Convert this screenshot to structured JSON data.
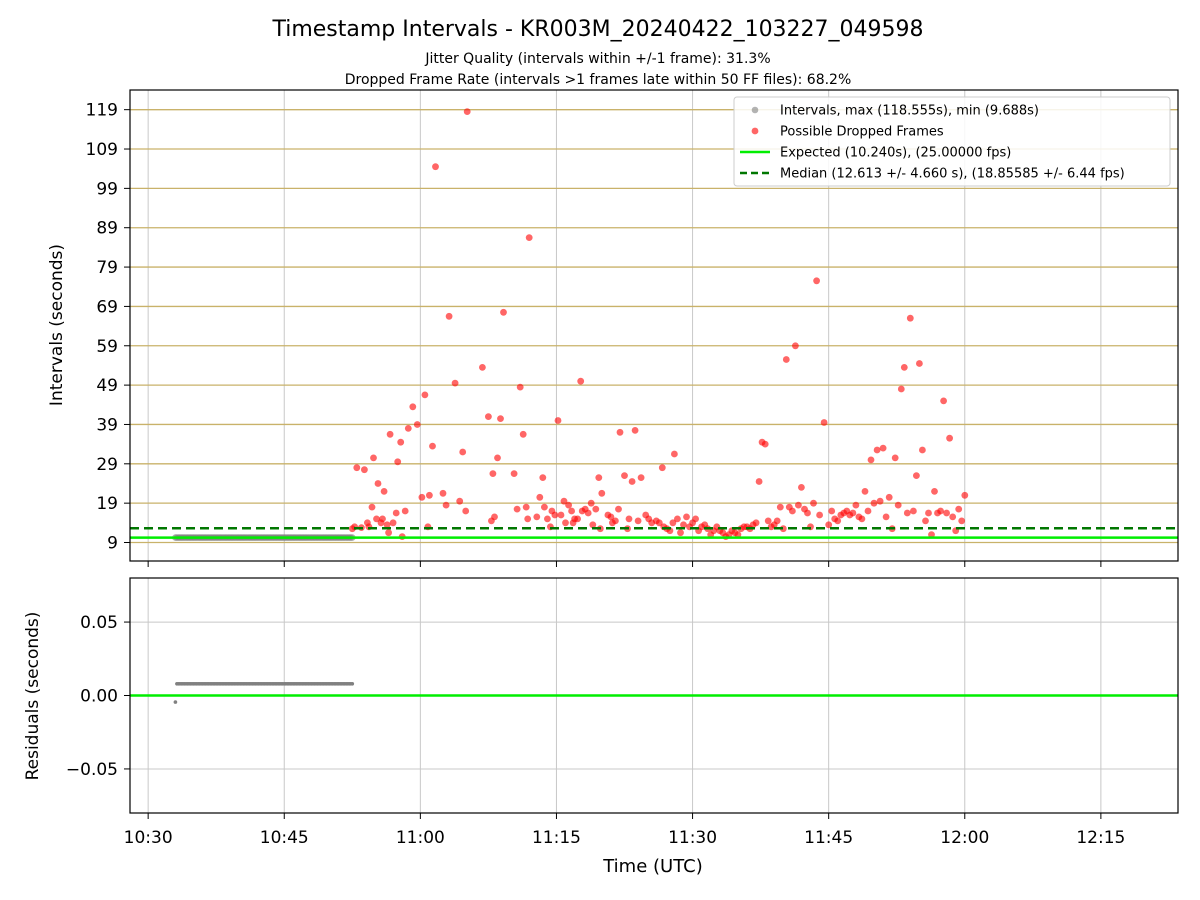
{
  "title": "Timestamp Intervals - KR003M_20240422_103227_049598",
  "subtitle1": "Jitter Quality (intervals within +/-1 frame): 31.3%",
  "subtitle2": "Dropped Frame Rate (intervals >1 frames late within 50 FF files): 68.2%",
  "colors": {
    "grey": "#808080",
    "red": "#ff0000",
    "expected": "#00ee00",
    "median": "#007700",
    "hgrid": "#c9b26a",
    "grid": "#c8c8c8"
  },
  "chart_data": [
    {
      "type": "scatter",
      "xlabel": "",
      "ylabel": "Intervals (seconds)",
      "xlim": [
        "10:28:00",
        "12:23:30"
      ],
      "ylim": [
        4.3,
        124.0
      ],
      "yticks": [
        9,
        19,
        29,
        39,
        49,
        59,
        69,
        79,
        89,
        99,
        109,
        119
      ],
      "xticks": [
        "10:30",
        "10:45",
        "11:00",
        "11:15",
        "11:30",
        "11:45",
        "12:00",
        "12:15"
      ],
      "grid": true,
      "legend_position": "top-right",
      "legend": [
        "Intervals, max (118.555s), min (9.688s)",
        "Possible Dropped Frames",
        "Expected (10.240s), (25.00000 fps)",
        "Median (12.613 +/- 4.660 s), (18.85585 +/- 6.44 fps)"
      ],
      "expected": 10.24,
      "median": 12.613,
      "series": [
        {
          "name": "Intervals, max (118.555s), min (9.688s)",
          "x_range": [
            "10:33:00",
            "10:52:30"
          ],
          "value": 10.24
        },
        {
          "name": "Possible Dropped Frames",
          "points": [
            [
              "10:52:30",
              12.5
            ],
            [
              "10:52:45",
              13.0
            ],
            [
              "10:53:00",
              28.0
            ],
            [
              "10:53:30",
              12.8
            ],
            [
              "10:53:50",
              27.5
            ],
            [
              "10:54:10",
              14.0
            ],
            [
              "10:54:20",
              13.0
            ],
            [
              "10:54:40",
              18.0
            ],
            [
              "10:54:50",
              30.5
            ],
            [
              "10:55:10",
              15.0
            ],
            [
              "10:55:20",
              24.0
            ],
            [
              "10:55:40",
              14.0
            ],
            [
              "10:55:50",
              15.0
            ],
            [
              "10:56:00",
              22.0
            ],
            [
              "10:56:20",
              13.5
            ],
            [
              "10:56:30",
              11.5
            ],
            [
              "10:56:40",
              36.5
            ],
            [
              "10:57:00",
              14.0
            ],
            [
              "10:57:20",
              16.5
            ],
            [
              "10:57:30",
              29.5
            ],
            [
              "10:57:50",
              34.5
            ],
            [
              "10:58:00",
              10.5
            ],
            [
              "10:58:20",
              17.0
            ],
            [
              "10:58:40",
              38.0
            ],
            [
              "10:59:10",
              43.5
            ],
            [
              "10:59:40",
              39.0
            ],
            [
              "11:00:10",
              20.5
            ],
            [
              "11:00:30",
              46.5
            ],
            [
              "11:00:50",
              13.0
            ],
            [
              "11:01:00",
              21.0
            ],
            [
              "11:01:20",
              33.5
            ],
            [
              "11:01:40",
              104.5
            ],
            [
              "11:02:30",
              21.5
            ],
            [
              "11:02:50",
              18.5
            ],
            [
              "11:03:10",
              66.5
            ],
            [
              "11:03:50",
              49.5
            ],
            [
              "11:04:20",
              19.5
            ],
            [
              "11:04:40",
              32.0
            ],
            [
              "11:05:00",
              17.0
            ],
            [
              "11:05:10",
              118.5
            ],
            [
              "11:06:50",
              53.5
            ],
            [
              "11:07:30",
              41.0
            ],
            [
              "11:07:50",
              14.5
            ],
            [
              "11:08:00",
              26.5
            ],
            [
              "11:08:10",
              15.5
            ],
            [
              "11:08:30",
              30.5
            ],
            [
              "11:08:50",
              40.5
            ],
            [
              "11:09:10",
              67.5
            ],
            [
              "11:10:20",
              26.5
            ],
            [
              "11:10:40",
              17.5
            ],
            [
              "11:11:00",
              48.5
            ],
            [
              "11:11:20",
              36.5
            ],
            [
              "11:11:40",
              18.0
            ],
            [
              "11:11:50",
              15.0
            ],
            [
              "11:12:00",
              86.5
            ],
            [
              "11:12:50",
              15.5
            ],
            [
              "11:13:10",
              20.5
            ],
            [
              "11:13:30",
              25.5
            ],
            [
              "11:13:40",
              18.0
            ],
            [
              "11:14:00",
              15.0
            ],
            [
              "11:14:20",
              13.0
            ],
            [
              "11:14:30",
              17.0
            ],
            [
              "11:14:50",
              16.0
            ],
            [
              "11:15:10",
              40.0
            ],
            [
              "11:15:30",
              16.0
            ],
            [
              "11:15:50",
              19.5
            ],
            [
              "11:16:00",
              14.0
            ],
            [
              "11:16:20",
              18.5
            ],
            [
              "11:16:40",
              17.0
            ],
            [
              "11:16:50",
              14.0
            ],
            [
              "11:17:00",
              15.0
            ],
            [
              "11:17:20",
              15.0
            ],
            [
              "11:17:40",
              50.0
            ],
            [
              "11:17:50",
              17.0
            ],
            [
              "11:18:10",
              17.5
            ],
            [
              "11:18:30",
              16.5
            ],
            [
              "11:18:50",
              19.0
            ],
            [
              "11:19:00",
              13.5
            ],
            [
              "11:19:20",
              17.5
            ],
            [
              "11:19:40",
              25.5
            ],
            [
              "11:19:50",
              12.5
            ],
            [
              "11:20:00",
              21.5
            ],
            [
              "11:20:40",
              16.0
            ],
            [
              "11:21:00",
              15.5
            ],
            [
              "11:21:10",
              14.0
            ],
            [
              "11:21:30",
              14.5
            ],
            [
              "11:21:50",
              17.5
            ],
            [
              "11:22:00",
              37.0
            ],
            [
              "11:22:30",
              26.0
            ],
            [
              "11:22:50",
              12.5
            ],
            [
              "11:23:00",
              15.0
            ],
            [
              "11:23:20",
              24.5
            ],
            [
              "11:23:40",
              37.5
            ],
            [
              "11:24:00",
              14.5
            ],
            [
              "11:24:20",
              25.5
            ],
            [
              "11:24:50",
              16.0
            ],
            [
              "11:25:10",
              15.0
            ],
            [
              "11:25:30",
              14.0
            ],
            [
              "11:26:00",
              14.5
            ],
            [
              "11:26:20",
              14.0
            ],
            [
              "11:26:40",
              28.0
            ],
            [
              "11:26:50",
              13.0
            ],
            [
              "11:27:10",
              12.5
            ],
            [
              "11:27:30",
              12.0
            ],
            [
              "11:27:50",
              14.0
            ],
            [
              "11:28:00",
              31.5
            ],
            [
              "11:28:20",
              15.0
            ],
            [
              "11:28:40",
              11.5
            ],
            [
              "11:29:00",
              13.5
            ],
            [
              "11:29:20",
              15.5
            ],
            [
              "11:29:40",
              13.0
            ],
            [
              "11:30:00",
              14.0
            ],
            [
              "11:30:20",
              15.0
            ],
            [
              "11:30:40",
              12.0
            ],
            [
              "11:31:00",
              13.0
            ],
            [
              "11:31:20",
              13.5
            ],
            [
              "11:31:40",
              12.5
            ],
            [
              "11:32:00",
              11.0
            ],
            [
              "11:32:20",
              12.0
            ],
            [
              "11:32:40",
              13.0
            ],
            [
              "11:33:00",
              12.0
            ],
            [
              "11:33:20",
              11.5
            ],
            [
              "11:33:40",
              10.5
            ],
            [
              "11:34:00",
              11.0
            ],
            [
              "11:34:20",
              12.0
            ],
            [
              "11:34:40",
              11.5
            ],
            [
              "11:35:00",
              11.0
            ],
            [
              "11:35:20",
              12.5
            ],
            [
              "11:35:40",
              13.0
            ],
            [
              "11:36:00",
              13.0
            ],
            [
              "11:36:20",
              12.5
            ],
            [
              "11:36:40",
              13.5
            ],
            [
              "11:37:00",
              14.0
            ],
            [
              "11:37:20",
              24.5
            ],
            [
              "11:37:40",
              34.5
            ],
            [
              "11:38:00",
              34.0
            ],
            [
              "11:38:20",
              14.5
            ],
            [
              "11:38:40",
              13.0
            ],
            [
              "11:39:00",
              13.5
            ],
            [
              "11:39:20",
              14.5
            ],
            [
              "11:39:40",
              18.0
            ],
            [
              "11:40:00",
              12.5
            ],
            [
              "11:40:20",
              55.5
            ],
            [
              "11:40:40",
              18.0
            ],
            [
              "11:41:00",
              17.0
            ],
            [
              "11:41:20",
              59.0
            ],
            [
              "11:41:40",
              18.5
            ],
            [
              "11:42:00",
              23.0
            ],
            [
              "11:42:20",
              17.5
            ],
            [
              "11:42:40",
              16.5
            ],
            [
              "11:43:00",
              13.0
            ],
            [
              "11:43:20",
              19.0
            ],
            [
              "11:43:40",
              75.5
            ],
            [
              "11:44:00",
              16.0
            ],
            [
              "11:44:30",
              39.5
            ],
            [
              "11:45:00",
              13.5
            ],
            [
              "11:45:20",
              17.0
            ],
            [
              "11:45:40",
              15.0
            ],
            [
              "11:46:00",
              14.5
            ],
            [
              "11:46:20",
              16.0
            ],
            [
              "11:46:40",
              16.5
            ],
            [
              "11:47:00",
              17.0
            ],
            [
              "11:47:20",
              16.0
            ],
            [
              "11:47:40",
              16.5
            ],
            [
              "11:48:00",
              18.5
            ],
            [
              "11:48:20",
              15.5
            ],
            [
              "11:48:40",
              15.0
            ],
            [
              "11:49:00",
              22.0
            ],
            [
              "11:49:20",
              17.0
            ],
            [
              "11:49:40",
              30.0
            ],
            [
              "11:50:00",
              19.0
            ],
            [
              "11:50:20",
              32.5
            ],
            [
              "11:50:40",
              19.5
            ],
            [
              "11:51:00",
              33.0
            ],
            [
              "11:51:20",
              15.5
            ],
            [
              "11:51:40",
              20.5
            ],
            [
              "11:52:00",
              12.5
            ],
            [
              "11:52:20",
              30.5
            ],
            [
              "11:52:40",
              18.5
            ],
            [
              "11:53:00",
              48.0
            ],
            [
              "11:53:20",
              53.5
            ],
            [
              "11:53:40",
              16.5
            ],
            [
              "11:54:00",
              66.0
            ],
            [
              "11:54:20",
              17.0
            ],
            [
              "11:54:40",
              26.0
            ],
            [
              "11:55:00",
              54.5
            ],
            [
              "11:55:20",
              32.5
            ],
            [
              "11:55:40",
              14.5
            ],
            [
              "11:56:00",
              16.5
            ],
            [
              "11:56:20",
              11.0
            ],
            [
              "11:56:40",
              22.0
            ],
            [
              "11:57:00",
              16.5
            ],
            [
              "11:57:20",
              17.0
            ],
            [
              "11:57:40",
              45.0
            ],
            [
              "11:58:00",
              16.5
            ],
            [
              "11:58:20",
              35.5
            ],
            [
              "11:58:40",
              15.5
            ],
            [
              "11:59:00",
              12.0
            ],
            [
              "11:59:20",
              17.5
            ],
            [
              "11:59:40",
              14.5
            ],
            [
              "12:00:00",
              21.0
            ]
          ]
        }
      ]
    },
    {
      "type": "scatter",
      "xlabel": "Time (UTC)",
      "ylabel": "Residuals (seconds)",
      "xlim": [
        "10:28:00",
        "12:23:30"
      ],
      "ylim": [
        -0.08,
        0.08
      ],
      "yticks": [
        "0.05",
        "0.00",
        "−0.05"
      ],
      "xticks": [
        "10:30",
        "10:45",
        "11:00",
        "11:15",
        "11:30",
        "11:45",
        "12:00",
        "12:15"
      ],
      "grid": true,
      "zero_line": 0.0,
      "series": [
        {
          "name": "",
          "x_range": [
            "10:33:00",
            "10:52:30"
          ],
          "value": 0.008,
          "first": -0.0045
        }
      ]
    }
  ]
}
